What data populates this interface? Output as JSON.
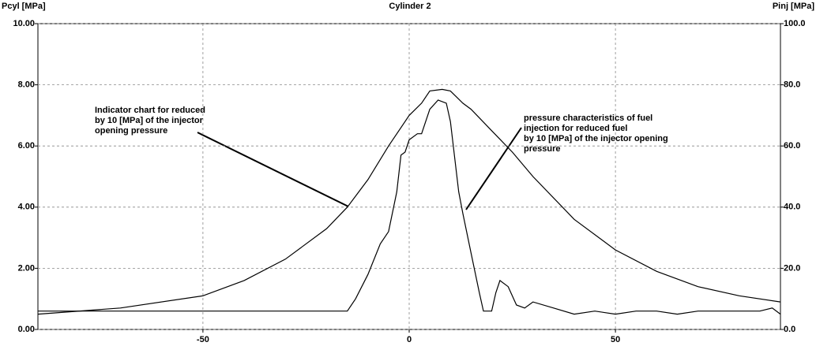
{
  "chart_data": {
    "type": "line",
    "title": "Cylinder 2",
    "y_label": "Pcyl [MPa]",
    "y2_label": "Pinj [MPa]",
    "xlim": [
      -90,
      90
    ],
    "xticks": [
      -50,
      0,
      50
    ],
    "ylim": [
      0,
      10
    ],
    "yticks": [
      {
        "value": 0,
        "label": "0.00"
      },
      {
        "value": 2,
        "label": "2.00"
      },
      {
        "value": 4,
        "label": "4.00"
      },
      {
        "value": 6,
        "label": "6.00"
      },
      {
        "value": 8,
        "label": "8.00"
      },
      {
        "value": 10,
        "label": "10.00"
      }
    ],
    "y2lim": [
      0,
      100
    ],
    "y2ticks": [
      {
        "value": 0,
        "label": "0.0"
      },
      {
        "value": 20,
        "label": "20.0"
      },
      {
        "value": 40,
        "label": "40.0"
      },
      {
        "value": 60,
        "label": "60.0"
      },
      {
        "value": 80,
        "label": "80.0"
      },
      {
        "value": 100,
        "label": "100.0"
      }
    ],
    "grid": true,
    "series": [
      {
        "color": "#000000",
        "x": [
          -90,
          -70,
          -50,
          -40,
          -30,
          -20,
          -15,
          -10,
          -5,
          0,
          3,
          5,
          8,
          10,
          13,
          15,
          20,
          25,
          30,
          40,
          50,
          60,
          70,
          80,
          90
        ],
        "values": [
          0.5,
          0.7,
          1.1,
          1.6,
          2.3,
          3.3,
          4.0,
          4.9,
          6.0,
          7.0,
          7.4,
          7.8,
          7.85,
          7.8,
          7.4,
          7.2,
          6.5,
          5.8,
          5.0,
          3.6,
          2.6,
          1.9,
          1.4,
          1.1,
          0.9
        ]
      },
      {
        "color": "#000000",
        "axis": "y2",
        "x": [
          -90,
          -15,
          -13,
          -10,
          -7,
          -5,
          -3,
          -2,
          -1,
          0,
          2,
          3,
          5,
          7,
          9,
          10,
          12,
          13,
          15,
          17,
          18,
          20,
          21,
          22,
          24,
          26,
          28,
          30,
          35,
          40,
          45,
          50,
          55,
          60,
          65,
          70,
          75,
          80,
          85,
          88,
          90
        ],
        "values": [
          6,
          6,
          10,
          18,
          28,
          32,
          45,
          57,
          58,
          62,
          64,
          64,
          72,
          75,
          74,
          68,
          45,
          38,
          25,
          12,
          6,
          6,
          12,
          16,
          14,
          8,
          7,
          9,
          7,
          5,
          6,
          5,
          6,
          6,
          5,
          6,
          6,
          6,
          6,
          7,
          5
        ]
      }
    ],
    "annotations": [
      {
        "lines": [
          "Indicator chart for reduced",
          "by 10 [MPa] of the injector",
          "opening pressure"
        ]
      },
      {
        "lines": [
          "pressure characteristics of fuel",
          "injection for reduced fuel",
          "by 10 [MPa] of the injector opening",
          "pressure"
        ]
      }
    ]
  }
}
